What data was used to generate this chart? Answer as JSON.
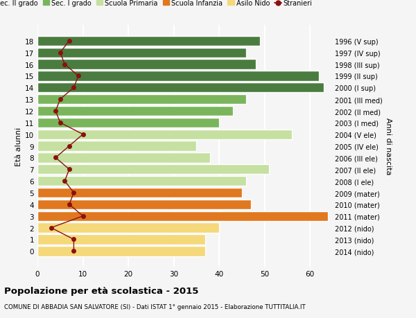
{
  "ages": [
    18,
    17,
    16,
    15,
    14,
    13,
    12,
    11,
    10,
    9,
    8,
    7,
    6,
    5,
    4,
    3,
    2,
    1,
    0
  ],
  "bar_values": [
    49,
    46,
    48,
    62,
    63,
    46,
    43,
    40,
    56,
    35,
    38,
    51,
    46,
    45,
    47,
    64,
    40,
    37,
    37
  ],
  "right_labels": [
    "1996 (V sup)",
    "1997 (IV sup)",
    "1998 (III sup)",
    "1999 (II sup)",
    "2000 (I sup)",
    "2001 (III med)",
    "2002 (II med)",
    "2003 (I med)",
    "2004 (V ele)",
    "2005 (IV ele)",
    "2006 (III ele)",
    "2007 (II ele)",
    "2008 (I ele)",
    "2009 (mater)",
    "2010 (mater)",
    "2011 (mater)",
    "2012 (nido)",
    "2013 (nido)",
    "2014 (nido)"
  ],
  "bar_colors": [
    "#4a7c3f",
    "#4a7c3f",
    "#4a7c3f",
    "#4a7c3f",
    "#4a7c3f",
    "#7ab55c",
    "#7ab55c",
    "#7ab55c",
    "#c5e0a0",
    "#c5e0a0",
    "#c5e0a0",
    "#c5e0a0",
    "#c5e0a0",
    "#e07820",
    "#e07820",
    "#e07820",
    "#f5d87a",
    "#f5d87a",
    "#f5d87a"
  ],
  "stranieri_values": [
    7,
    5,
    6,
    9,
    8,
    5,
    4,
    5,
    10,
    7,
    4,
    7,
    6,
    8,
    7,
    10,
    3,
    8,
    8
  ],
  "legend_labels": [
    "Sec. II grado",
    "Sec. I grado",
    "Scuola Primaria",
    "Scuola Infanzia",
    "Asilo Nido",
    "Stranieri"
  ],
  "legend_colors": [
    "#4a7c3f",
    "#7ab55c",
    "#c5e0a0",
    "#e07820",
    "#f5d87a",
    "#8b1010"
  ],
  "ylabel": "Età alunni",
  "right_ylabel": "Anni di nascita",
  "title": "Popolazione per età scolastica - 2015",
  "subtitle": "COMUNE DI ABBADIA SAN SALVATORE (SI) - Dati ISTAT 1° gennaio 2015 - Elaborazione TUTTITALIA.IT",
  "xlim": [
    0,
    65
  ],
  "xticks": [
    0,
    10,
    20,
    30,
    40,
    50,
    60
  ],
  "background_color": "#f5f5f5",
  "grid_color": "#ffffff"
}
